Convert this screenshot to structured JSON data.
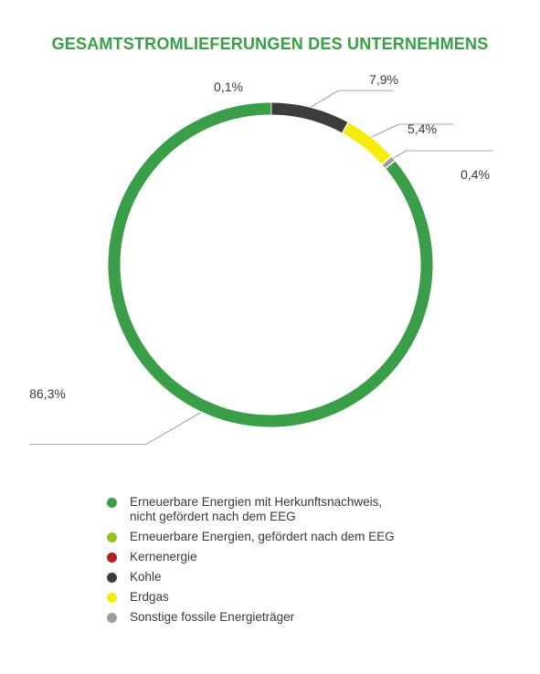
{
  "chart_data": {
    "type": "pie",
    "title": "GESAMTSTROMLIEFERUNGEN DES UNTERNEHMENS",
    "style": "donut",
    "slices": [
      {
        "name": "Kernenergie",
        "value": 0.1,
        "label": "0,1%",
        "color": "#b31e23"
      },
      {
        "name": "Kohle",
        "value": 7.9,
        "label": "7,9%",
        "color": "#3c3c3b"
      },
      {
        "name": "Erdgas",
        "value": 5.4,
        "label": "5,4%",
        "color": "#f5ec0e"
      },
      {
        "name": "Sonstige fossile Energieträger",
        "value": 0.4,
        "label": "0,4%",
        "color": "#9d9d9c"
      },
      {
        "name": "Erneuerbare Energien mit Herkunftsnachweis, nicht gefördert nach dem EEG",
        "value": 86.3,
        "label": "86,3%",
        "color": "#3a9d47"
      }
    ],
    "legend": [
      {
        "label": "Erneuerbare Energien mit Herkunftsnachweis,\nnicht gefördert nach dem EEG",
        "color": "#3a9d47"
      },
      {
        "label": "Erneuerbare Energien, gefördert nach dem EEG",
        "color": "#95c11f"
      },
      {
        "label": "Kernenergie",
        "color": "#b31e23"
      },
      {
        "label": "Kohle",
        "color": "#3c3c3b"
      },
      {
        "label": "Erdgas",
        "color": "#f5ec0e"
      },
      {
        "label": "Sonstige fossile Energieträger",
        "color": "#9d9d9c"
      }
    ],
    "legend_position": "bottom"
  }
}
